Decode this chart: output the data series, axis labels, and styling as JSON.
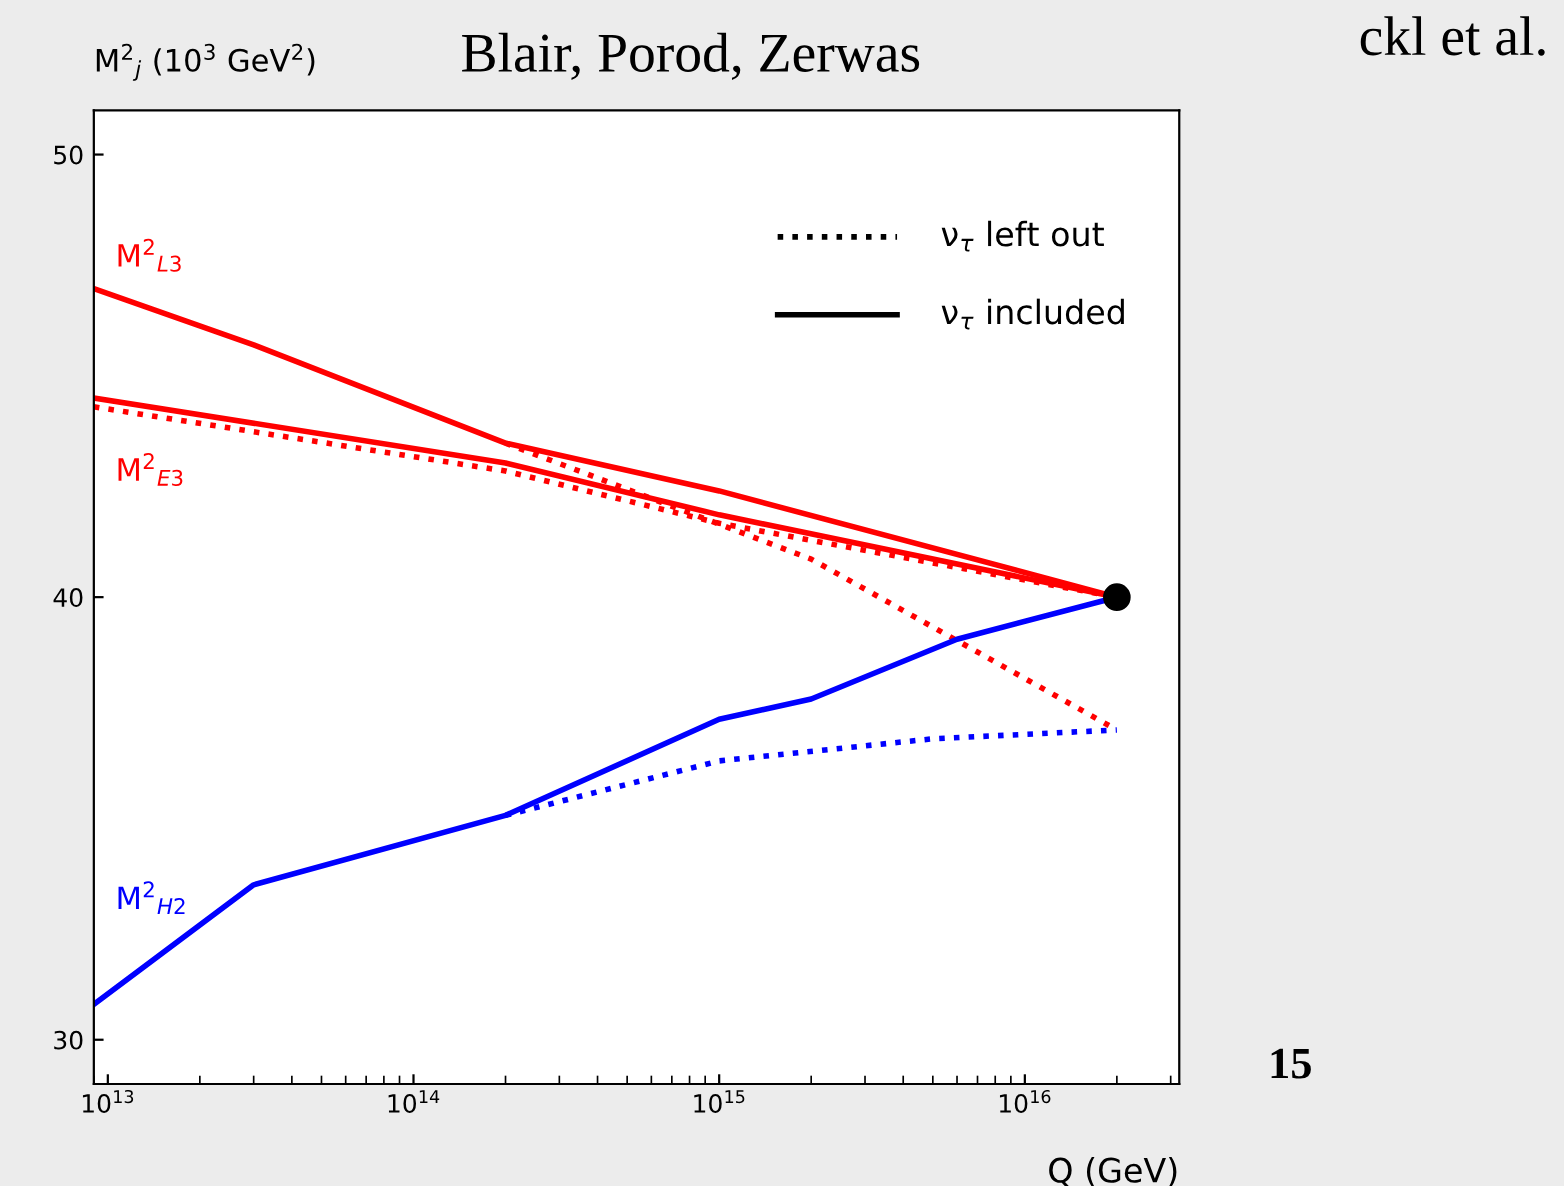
{
  "chart_data": {
    "type": "line",
    "title": "Blair, Porod, Zerwas",
    "xlabel": "Q (GeV)",
    "ylabel": "M$^{2}$$_{j}$ (10$^{3}$ GeV$^{2}$)",
    "log": "x",
    "xlim": [
      9000000000000.0,
      3.2e+16
    ],
    "ylim": [
      29,
      51
    ],
    "xticks": [
      {
        "value": 10000000000000.0,
        "label": "10$^{13}$"
      },
      {
        "value": 100000000000000.0,
        "label": "10$^{14}$"
      },
      {
        "value": 1000000000000000.0,
        "label": "10$^{15}$"
      },
      {
        "value": 1e+16,
        "label": "10$^{16}$"
      }
    ],
    "yticks": [
      30,
      40,
      50
    ],
    "grid": false,
    "marker": "none",
    "series": [
      {
        "color": "#ff0000",
        "line_style": "solid",
        "x": [
          9000000000000.0,
          30000000000000.0,
          200000000000000.0,
          1000000000000000.0,
          2e+16
        ],
        "values": [
          46.97,
          45.7,
          43.48,
          42.4,
          40
        ]
      },
      {
        "color": "#ff0000",
        "line_style": "dotted",
        "x": [
          200000000000000.0,
          2000000000000000.0,
          2e+16
        ],
        "values": [
          43.48,
          40.86,
          37.0
        ]
      },
      {
        "color": "#ff0000",
        "line_style": "solid",
        "x": [
          9000000000000.0,
          200000000000000.0,
          1000000000000000.0,
          2e+16
        ],
        "values": [
          44.5,
          43.03,
          41.86,
          40
        ]
      },
      {
        "color": "#ff0000",
        "line_style": "dotted",
        "x": [
          9000000000000.0,
          200000000000000.0,
          1000000000000000.0,
          2e+16
        ],
        "values": [
          44.3,
          42.85,
          41.67,
          40
        ]
      },
      {
        "color": "#0000ff",
        "line_style": "solid",
        "x": [
          9000000000000.0,
          30000000000000.0,
          200000000000000.0,
          1000000000000000.0,
          2000000000000000.0,
          6000000000000000.0,
          2e+16
        ],
        "values": [
          30.8,
          33.5,
          35.07,
          37.24,
          37.7,
          39.05,
          40
        ]
      },
      {
        "color": "#0000ff",
        "line_style": "dotted",
        "x": [
          200000000000000.0,
          1000000000000000.0,
          5000000000000000.0,
          2e+16
        ],
        "values": [
          35.07,
          36.3,
          36.8,
          37.0
        ]
      },
      {
        "type": "scatter",
        "color": "#000000",
        "marker": "circle",
        "x": [
          2e+16
        ],
        "values": [
          40
        ]
      }
    ],
    "annotations": [
      "M$^{2}$$_{L3}$",
      "M$^{2}$$_{E3}$",
      "M$^{2}$$_{H2}$",
      "ν$_{τ}$ left out",
      "ν$_{τ}$ included",
      "ckl et al.",
      "15"
    ]
  }
}
